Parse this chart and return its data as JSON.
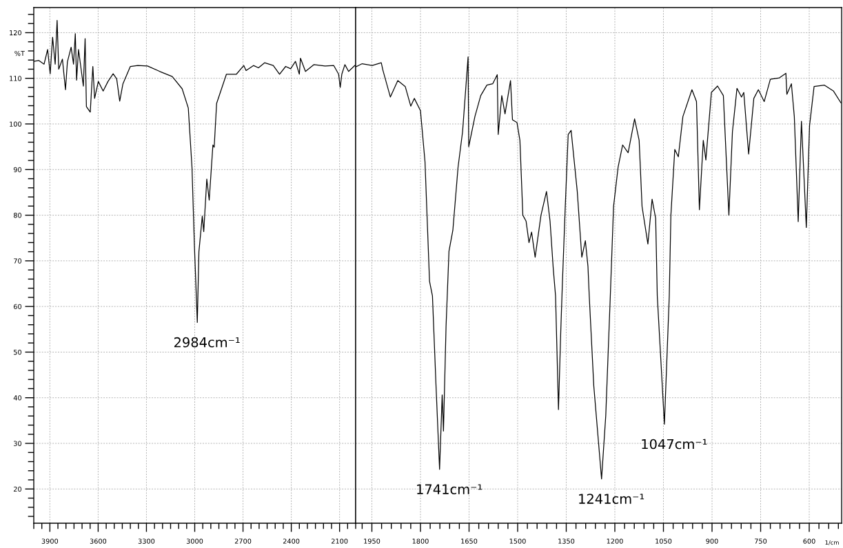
{
  "chart_data": [
    {
      "type": "line",
      "ylabel": "%T",
      "xlim": [
        4000,
        2000
      ],
      "xticks": [
        3900,
        3600,
        3300,
        3000,
        2700,
        2400,
        2100
      ],
      "ylim": [
        12.5,
        125.5
      ],
      "yticks": [
        20,
        30,
        40,
        50,
        60,
        70,
        80,
        90,
        100,
        110,
        120
      ],
      "grid": true,
      "marker": "none",
      "line_style": "solid",
      "x": [
        4000,
        3968,
        3936,
        3914,
        3898,
        3883,
        3867,
        3855,
        3845,
        3822,
        3803,
        3791,
        3768,
        3753,
        3742,
        3734,
        3722,
        3692,
        3681,
        3673,
        3649,
        3633,
        3622,
        3599,
        3569,
        3539,
        3507,
        3485,
        3466,
        3446,
        3400,
        3354,
        3293,
        3217,
        3140,
        3078,
        3040,
        3017,
        3002,
        2984,
        2974,
        2953,
        2944,
        2925,
        2910,
        2887,
        2879,
        2864,
        2803,
        2741,
        2695,
        2681,
        2635,
        2604,
        2566,
        2512,
        2473,
        2435,
        2404,
        2374,
        2350,
        2343,
        2312,
        2259,
        2190,
        2136,
        2106,
        2096,
        2086,
        2067,
        2044,
        2006,
        2000
      ],
      "series": [
        {
          "color": "#000000",
          "values": [
            113.7,
            113.9,
            113.1,
            116.3,
            111.0,
            119.0,
            113.1,
            122.7,
            112.0,
            114.2,
            107.5,
            113.6,
            116.8,
            113.1,
            119.8,
            109.6,
            116.3,
            108.3,
            118.7,
            103.8,
            102.6,
            112.6,
            105.6,
            109.3,
            107.2,
            109.3,
            111.0,
            109.9,
            105.0,
            108.8,
            112.6,
            112.8,
            112.7,
            111.5,
            110.4,
            107.7,
            103.5,
            90.5,
            73.4,
            56.5,
            72.0,
            79.8,
            76.4,
            87.9,
            83.3,
            95.4,
            94.9,
            104.5,
            110.9,
            110.9,
            112.8,
            111.7,
            112.8,
            112.3,
            113.4,
            112.8,
            110.9,
            112.6,
            112.1,
            113.7,
            110.9,
            114.4,
            111.5,
            113.0,
            112.7,
            112.8,
            110.9,
            108.0,
            110.9,
            113.0,
            111.5,
            112.8,
            112.8
          ]
        }
      ],
      "annotations": [
        {
          "text": "2984cm⁻¹",
          "x": 2984,
          "y": 56.5
        }
      ]
    },
    {
      "type": "line",
      "xlabel": "1/cm",
      "xlim": [
        2000,
        500
      ],
      "xticks": [
        1950,
        1800,
        1650,
        1500,
        1350,
        1200,
        1050,
        900,
        750,
        600
      ],
      "ylim": [
        12.5,
        125.5
      ],
      "yticks": [
        20,
        30,
        40,
        50,
        60,
        70,
        80,
        90,
        100,
        110,
        120
      ],
      "grid": true,
      "marker": "none",
      "line_style": "solid",
      "tick_labels": "x",
      "x": [
        2000,
        1980,
        1949,
        1921,
        1916,
        1893,
        1870,
        1847,
        1830,
        1819,
        1800,
        1786,
        1772,
        1763,
        1752,
        1741,
        1733,
        1729,
        1721,
        1712,
        1700,
        1684,
        1670,
        1653,
        1651,
        1632,
        1614,
        1595,
        1577,
        1563,
        1560,
        1549,
        1539,
        1522,
        1516,
        1502,
        1493,
        1484,
        1474,
        1465,
        1457,
        1446,
        1428,
        1411,
        1400,
        1390,
        1383,
        1374,
        1367,
        1362,
        1353,
        1344,
        1335,
        1316,
        1302,
        1291,
        1283,
        1279,
        1265,
        1241,
        1228,
        1214,
        1204,
        1190,
        1176,
        1159,
        1139,
        1125,
        1116,
        1098,
        1085,
        1074,
        1069,
        1047,
        1032,
        1027,
        1015,
        1004,
        990,
        962,
        948,
        939,
        927,
        919,
        902,
        883,
        865,
        848,
        837,
        823,
        809,
        802,
        787,
        771,
        757,
        739,
        720,
        692,
        672,
        669,
        655,
        646,
        634,
        624,
        609,
        599,
        585,
        553,
        525,
        502
      ],
      "series": [
        {
          "color": "#000000",
          "values": [
            112.5,
            113.2,
            112.8,
            113.4,
            111.8,
            105.9,
            109.5,
            108.2,
            103.9,
            105.6,
            102.9,
            91.7,
            65.5,
            62.3,
            42.6,
            24.3,
            40.6,
            32.7,
            55.7,
            72.1,
            76.7,
            90.5,
            98.3,
            114.7,
            95.0,
            101.6,
            106.2,
            108.5,
            108.8,
            110.8,
            97.7,
            106.2,
            102.2,
            109.5,
            100.9,
            100.3,
            96.4,
            80.0,
            78.7,
            74.0,
            76.3,
            70.8,
            80.0,
            85.2,
            78.7,
            68.2,
            62.3,
            37.4,
            54.4,
            64.9,
            82.0,
            97.7,
            98.6,
            85.2,
            70.8,
            74.4,
            68.8,
            62.3,
            42.6,
            22.2,
            36.1,
            62.3,
            81.9,
            90.5,
            95.4,
            93.7,
            101.1,
            96.4,
            81.9,
            73.7,
            83.5,
            79.3,
            62.3,
            34.2,
            62.3,
            80.0,
            94.4,
            92.8,
            101.6,
            107.5,
            104.9,
            81.2,
            96.4,
            92.1,
            106.9,
            108.3,
            106.2,
            80.0,
            98.3,
            107.8,
            105.9,
            106.9,
            93.4,
            105.6,
            107.5,
            104.9,
            109.8,
            110.1,
            111.1,
            106.5,
            108.8,
            101.6,
            78.6,
            100.6,
            77.3,
            99.6,
            108.2,
            108.5,
            107.2,
            104.6
          ]
        }
      ],
      "annotations": [
        {
          "text": "1741cm⁻¹",
          "x": 1741,
          "y": 24.3
        },
        {
          "text": "1241cm⁻¹",
          "x": 1241,
          "y": 22.2
        },
        {
          "text": "1047cm⁻¹",
          "x": 1047,
          "y": 34.2
        }
      ]
    }
  ]
}
